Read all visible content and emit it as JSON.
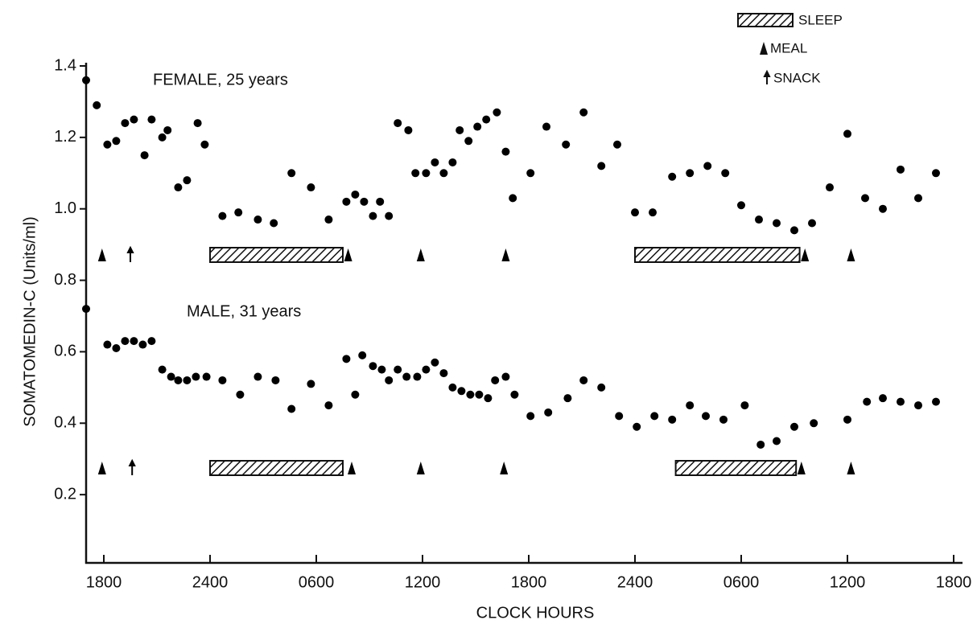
{
  "chart_data": {
    "type": "scatter",
    "x_label": "CLOCK HOURS",
    "y_label": "SOMATOMEDIN-C (Units/ml)",
    "xlim": [
      17,
      66.5
    ],
    "ylim": [
      0,
      1.4
    ],
    "xticks": [
      {
        "value": 18,
        "label": "1800"
      },
      {
        "value": 24,
        "label": "2400"
      },
      {
        "value": 30,
        "label": "0600"
      },
      {
        "value": 36,
        "label": "1200"
      },
      {
        "value": 42,
        "label": "1800"
      },
      {
        "value": 48,
        "label": "2400"
      },
      {
        "value": 54,
        "label": "0600"
      },
      {
        "value": 60,
        "label": "1200"
      },
      {
        "value": 66,
        "label": "1800"
      }
    ],
    "yticks": [
      0.2,
      0.4,
      0.6,
      0.8,
      {
        "value": 1,
        "label": "1.0"
      },
      1.2,
      1.4
    ],
    "legend": {
      "sleep": "SLEEP",
      "meal": "MEAL",
      "snack": "SNACK"
    },
    "series": [
      {
        "name": "FEMALE, 25 years",
        "color": "#000000",
        "x": [
          17.0,
          17.6,
          18.2,
          18.7,
          19.2,
          19.7,
          20.3,
          20.7,
          21.3,
          21.6,
          22.2,
          22.7,
          23.3,
          23.7,
          24.7,
          25.6,
          26.7,
          27.6,
          28.6,
          29.7,
          30.7,
          31.7,
          32.2,
          32.7,
          33.2,
          33.6,
          34.1,
          34.6,
          35.2,
          35.6,
          36.2,
          36.7,
          37.2,
          37.7,
          38.1,
          38.6,
          39.1,
          39.6,
          40.2,
          40.7,
          41.1,
          42.1,
          43.0,
          44.1,
          45.1,
          46.1,
          47.0,
          48.0,
          49.0,
          50.1,
          51.1,
          52.1,
          53.1,
          54.0,
          55.0,
          56.0,
          57.0,
          58.0,
          59.0,
          60.0,
          61.0,
          62.0,
          63.0,
          64.0,
          65.0
        ],
        "values": [
          1.36,
          1.29,
          1.18,
          1.19,
          1.24,
          1.25,
          1.15,
          1.25,
          1.2,
          1.22,
          1.06,
          1.08,
          1.24,
          1.18,
          0.98,
          0.99,
          0.97,
          0.96,
          1.1,
          1.06,
          0.97,
          1.02,
          1.04,
          1.02,
          0.98,
          1.02,
          0.98,
          1.24,
          1.22,
          1.1,
          1.1,
          1.13,
          1.1,
          1.13,
          1.22,
          1.19,
          1.23,
          1.25,
          1.27,
          1.16,
          1.03,
          1.1,
          1.23,
          1.18,
          1.27,
          1.12,
          1.18,
          0.99,
          0.99,
          1.09,
          1.1,
          1.12,
          1.1,
          1.01,
          0.97,
          0.96,
          0.94,
          0.96,
          1.06,
          1.21,
          1.03,
          1.0,
          1.11,
          1.03,
          1.1
        ],
        "sleep": [
          [
            24,
            31.5
          ],
          [
            48,
            57.3
          ]
        ],
        "meals": [
          17.9,
          31.8,
          35.9,
          40.7,
          57.6,
          60.2
        ],
        "snacks": [
          19.5
        ]
      },
      {
        "name": "MALE, 31 years",
        "color": "#000000",
        "x": [
          17.0,
          18.2,
          18.7,
          19.2,
          19.7,
          20.2,
          20.7,
          21.3,
          21.8,
          22.2,
          22.7,
          23.2,
          23.8,
          24.7,
          25.7,
          26.7,
          27.7,
          28.6,
          29.7,
          30.7,
          31.7,
          32.2,
          32.6,
          33.2,
          33.7,
          34.1,
          34.6,
          35.1,
          35.7,
          36.2,
          36.7,
          37.2,
          37.7,
          38.2,
          38.7,
          39.2,
          39.7,
          40.1,
          40.7,
          41.2,
          42.1,
          43.1,
          44.2,
          45.1,
          46.1,
          47.1,
          48.1,
          49.1,
          50.1,
          51.1,
          52.0,
          53.0,
          54.2,
          55.1,
          56.0,
          57.0,
          58.1,
          60.0,
          61.1,
          62.0,
          63.0,
          64.0,
          65.0
        ],
        "values": [
          0.72,
          0.62,
          0.61,
          0.63,
          0.63,
          0.62,
          0.63,
          0.55,
          0.53,
          0.52,
          0.52,
          0.53,
          0.53,
          0.52,
          0.48,
          0.53,
          0.52,
          0.44,
          0.51,
          0.45,
          0.58,
          0.48,
          0.59,
          0.56,
          0.55,
          0.52,
          0.55,
          0.53,
          0.53,
          0.55,
          0.57,
          0.54,
          0.5,
          0.49,
          0.48,
          0.48,
          0.47,
          0.52,
          0.53,
          0.48,
          0.42,
          0.43,
          0.47,
          0.52,
          0.5,
          0.42,
          0.39,
          0.42,
          0.41,
          0.45,
          0.42,
          0.41,
          0.45,
          0.34,
          0.35,
          0.39,
          0.4,
          0.41,
          0.46,
          0.47,
          0.46,
          0.45,
          0.46
        ],
        "sleep": [
          [
            24,
            31.5
          ],
          [
            50.3,
            57.1
          ]
        ],
        "meals": [
          17.9,
          32.0,
          35.9,
          40.6,
          57.4,
          60.2
        ],
        "snacks": [
          19.6
        ]
      }
    ]
  }
}
